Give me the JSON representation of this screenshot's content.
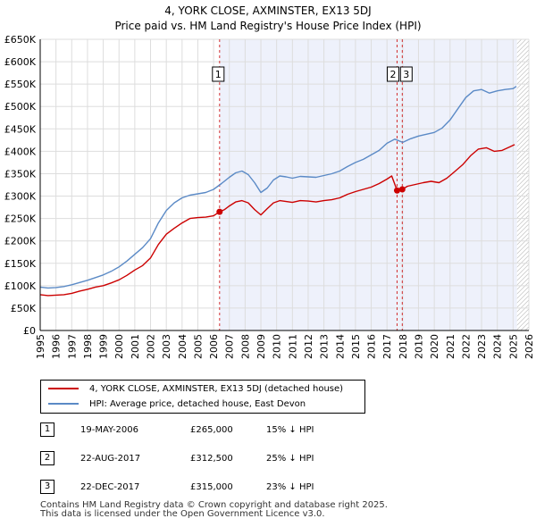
{
  "header": {
    "title_line1": "4, YORK CLOSE, AXMINSTER, EX13 5DJ",
    "title_line2": "Price paid vs. HM Land Registry's House Price Index (HPI)"
  },
  "chart_data": {
    "type": "line",
    "title": "4, YORK CLOSE, AXMINSTER, EX13 5DJ — Price paid vs. HM Land Registry's House Price Index (HPI)",
    "xlabel": "",
    "ylabel": "",
    "xlim": [
      1995,
      2026
    ],
    "ylim": [
      0,
      650000
    ],
    "y_ticks": [
      0,
      50000,
      100000,
      150000,
      200000,
      250000,
      300000,
      350000,
      400000,
      450000,
      500000,
      550000,
      600000,
      650000
    ],
    "y_tick_labels": [
      "£0",
      "£50K",
      "£100K",
      "£150K",
      "£200K",
      "£250K",
      "£300K",
      "£350K",
      "£400K",
      "£450K",
      "£500K",
      "£550K",
      "£600K",
      "£650K"
    ],
    "x_ticks": [
      1995,
      1996,
      1997,
      1998,
      1999,
      2000,
      2001,
      2002,
      2003,
      2004,
      2005,
      2006,
      2007,
      2008,
      2009,
      2010,
      2011,
      2012,
      2013,
      2014,
      2015,
      2016,
      2017,
      2018,
      2019,
      2020,
      2021,
      2022,
      2023,
      2024,
      2025,
      2026
    ],
    "x_tick_labels": [
      "1995",
      "1996",
      "1997",
      "1998",
      "1999",
      "2000",
      "2001",
      "2002",
      "2003",
      "2004",
      "2005",
      "2006",
      "2007",
      "2008",
      "2009",
      "2010",
      "2011",
      "2012",
      "2013",
      "2014",
      "2015",
      "2016",
      "2017",
      "2018",
      "2019",
      "2020",
      "2021",
      "2022",
      "2023",
      "2024",
      "2025",
      "2026"
    ],
    "shaded_period": [
      2006.38,
      2025.25
    ],
    "grid": true,
    "colors": {
      "property": "#cc0000",
      "hpi": "#5b8ac6",
      "shade": "#eef1fb",
      "vline": "#cc0000"
    },
    "series": [
      {
        "name": "4, YORK CLOSE, AXMINSTER, EX13 5DJ (detached house)",
        "color": "#cc0000",
        "x": [
          1995,
          1995.5,
          1996,
          1996.5,
          1997,
          1997.5,
          1998,
          1998.5,
          1999,
          1999.5,
          2000,
          2000.5,
          2001,
          2001.5,
          2002,
          2002.5,
          2003,
          2003.5,
          2004,
          2004.5,
          2005,
          2005.5,
          2006,
          2006.38,
          2006.7,
          2007,
          2007.4,
          2007.8,
          2008.2,
          2008.6,
          2009,
          2009.4,
          2009.8,
          2010.2,
          2010.6,
          2011,
          2011.5,
          2012,
          2012.5,
          2013,
          2013.5,
          2014,
          2014.5,
          2015,
          2015.5,
          2016,
          2016.5,
          2017,
          2017.3,
          2017.64,
          2017.97,
          2018.3,
          2018.8,
          2019.3,
          2019.8,
          2020.3,
          2020.8,
          2021.3,
          2021.8,
          2022.3,
          2022.8,
          2023.3,
          2023.8,
          2024.3,
          2024.8,
          2025.1
        ],
        "values": [
          80000,
          78000,
          79000,
          80000,
          83000,
          88000,
          92000,
          97000,
          100000,
          106000,
          113000,
          123000,
          135000,
          145000,
          162000,
          192000,
          215000,
          228000,
          240000,
          250000,
          252000,
          253000,
          256000,
          265000,
          270000,
          278000,
          287000,
          290000,
          285000,
          270000,
          258000,
          272000,
          285000,
          290000,
          288000,
          286000,
          290000,
          289000,
          287000,
          290000,
          292000,
          296000,
          304000,
          310000,
          315000,
          320000,
          328000,
          338000,
          345000,
          312500,
          315000,
          322000,
          326000,
          330000,
          333000,
          330000,
          340000,
          355000,
          370000,
          390000,
          405000,
          408000,
          400000,
          402000,
          410000,
          415000
        ]
      },
      {
        "name": "HPI: Average price, detached house, East Devon",
        "color": "#5b8ac6",
        "x": [
          1995,
          1995.5,
          1996,
          1996.5,
          1997,
          1997.5,
          1998,
          1998.5,
          1999,
          1999.5,
          2000,
          2000.5,
          2001,
          2001.5,
          2002,
          2002.5,
          2003,
          2003.5,
          2004,
          2004.5,
          2005,
          2005.5,
          2006,
          2006.5,
          2007,
          2007.4,
          2007.8,
          2008.2,
          2008.6,
          2009,
          2009.4,
          2009.8,
          2010.2,
          2010.6,
          2011,
          2011.5,
          2012,
          2012.5,
          2013,
          2013.5,
          2014,
          2014.5,
          2015,
          2015.5,
          2016,
          2016.5,
          2017,
          2017.5,
          2018,
          2018.5,
          2019,
          2019.5,
          2020,
          2020.5,
          2021,
          2021.5,
          2022,
          2022.5,
          2023,
          2023.5,
          2024,
          2024.5,
          2025,
          2025.2
        ],
        "values": [
          97000,
          95000,
          96000,
          98000,
          102000,
          107000,
          112000,
          118000,
          124000,
          132000,
          142000,
          155000,
          170000,
          185000,
          205000,
          240000,
          268000,
          285000,
          296000,
          302000,
          305000,
          308000,
          315000,
          328000,
          342000,
          352000,
          356000,
          348000,
          330000,
          308000,
          318000,
          336000,
          345000,
          343000,
          340000,
          344000,
          343000,
          342000,
          346000,
          350000,
          356000,
          366000,
          375000,
          382000,
          392000,
          402000,
          418000,
          427000,
          420000,
          428000,
          434000,
          438000,
          442000,
          452000,
          470000,
          495000,
          520000,
          535000,
          538000,
          530000,
          535000,
          538000,
          540000,
          545000
        ]
      }
    ],
    "annotations": [
      {
        "label": "1",
        "x": 2006.38,
        "value": 265000
      },
      {
        "label": "2",
        "x": 2017.64,
        "value": 312500
      },
      {
        "label": "3",
        "x": 2017.97,
        "value": 315000
      }
    ]
  },
  "legend": {
    "entries": [
      {
        "label": "4, YORK CLOSE, AXMINSTER, EX13 5DJ (detached house)",
        "color": "#cc0000"
      },
      {
        "label": "HPI: Average price, detached house, East Devon",
        "color": "#5b8ac6"
      }
    ]
  },
  "sales": [
    {
      "num": "1",
      "date": "19-MAY-2006",
      "price": "£265,000",
      "hpi": "15% ↓ HPI"
    },
    {
      "num": "2",
      "date": "22-AUG-2017",
      "price": "£312,500",
      "hpi": "25% ↓ HPI"
    },
    {
      "num": "3",
      "date": "22-DEC-2017",
      "price": "£315,000",
      "hpi": "23% ↓ HPI"
    }
  ],
  "footer": {
    "line1": "Contains HM Land Registry data © Crown copyright and database right 2025.",
    "line2": "This data is licensed under the Open Government Licence v3.0."
  }
}
